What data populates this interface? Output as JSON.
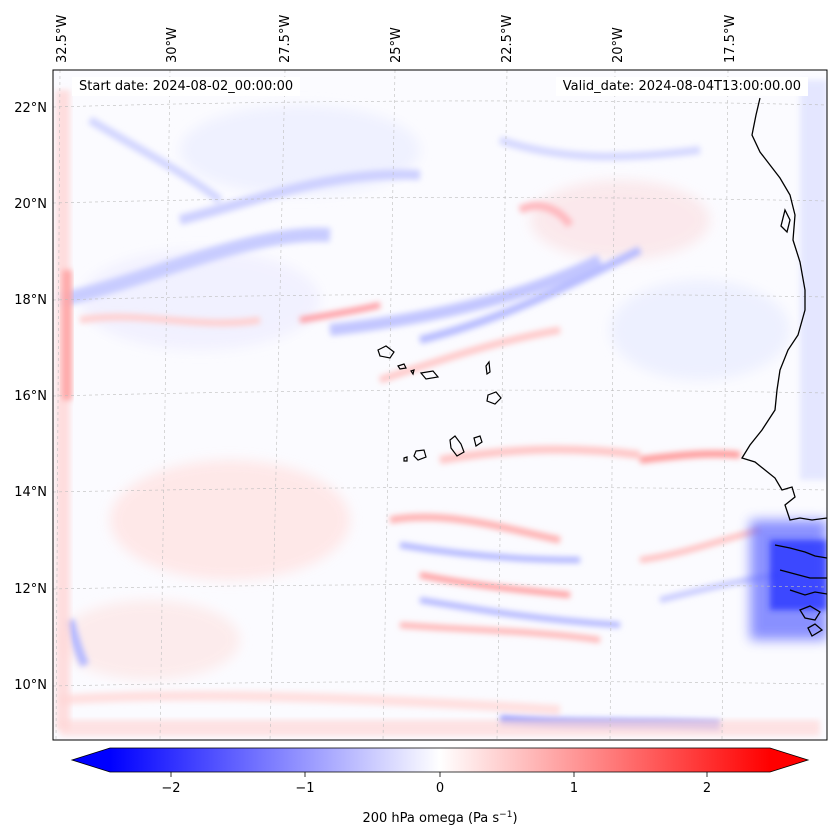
{
  "header": {
    "start_date": "Start date: 2024-08-02_00:00:00",
    "valid_date": "Valid_date: 2024-08-04T13:00:00.00"
  },
  "map": {
    "projection_note": "Lambert-like conic, lon ticks rotated",
    "longitude_ticks": [
      "32.5°W",
      "30°W",
      "27.5°W",
      "25°W",
      "22.5°W",
      "20°W",
      "17.5°W"
    ],
    "latitude_ticks": [
      "22°N",
      "20°N",
      "18°N",
      "16°N",
      "14°N",
      "12°N",
      "10°N"
    ],
    "field": "200 hPa omega",
    "features": [
      "African coastline",
      "Cape Verde islands",
      "graticule"
    ]
  },
  "colorbar": {
    "ticks": [
      "−2",
      "−1",
      "0",
      "1",
      "2"
    ],
    "label": "200 hPa omega (Pa s",
    "label_sup": "−1",
    "label_end": ")",
    "range": [
      -2.6,
      2.6
    ],
    "colormap": "bwr",
    "low_color": "#0000ff",
    "mid_color": "#ffffff",
    "high_color": "#ff0000"
  }
}
